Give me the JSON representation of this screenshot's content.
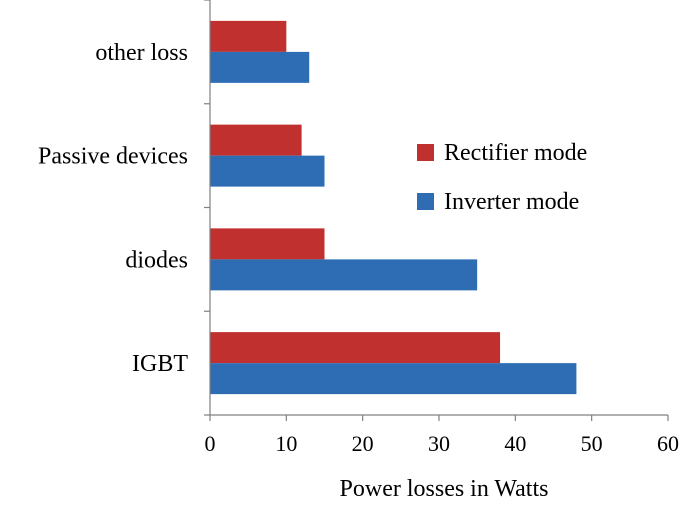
{
  "chart_data": {
    "type": "bar",
    "orientation": "horizontal",
    "categories": [
      "other loss",
      "Passive devices",
      "diodes",
      "IGBT"
    ],
    "series": [
      {
        "name": "Rectifier mode",
        "values": [
          10,
          12,
          15,
          38
        ],
        "color": "#C0302E"
      },
      {
        "name": "Inverter mode",
        "values": [
          13,
          15,
          35,
          48
        ],
        "color": "#2E6DB4"
      }
    ],
    "xlabel": "Power losses in Watts",
    "ylabel": "",
    "xlim": [
      0,
      60
    ],
    "xticks": [
      0,
      10,
      20,
      30,
      40,
      50,
      60
    ],
    "grid": false,
    "legend_position": "right-middle"
  }
}
